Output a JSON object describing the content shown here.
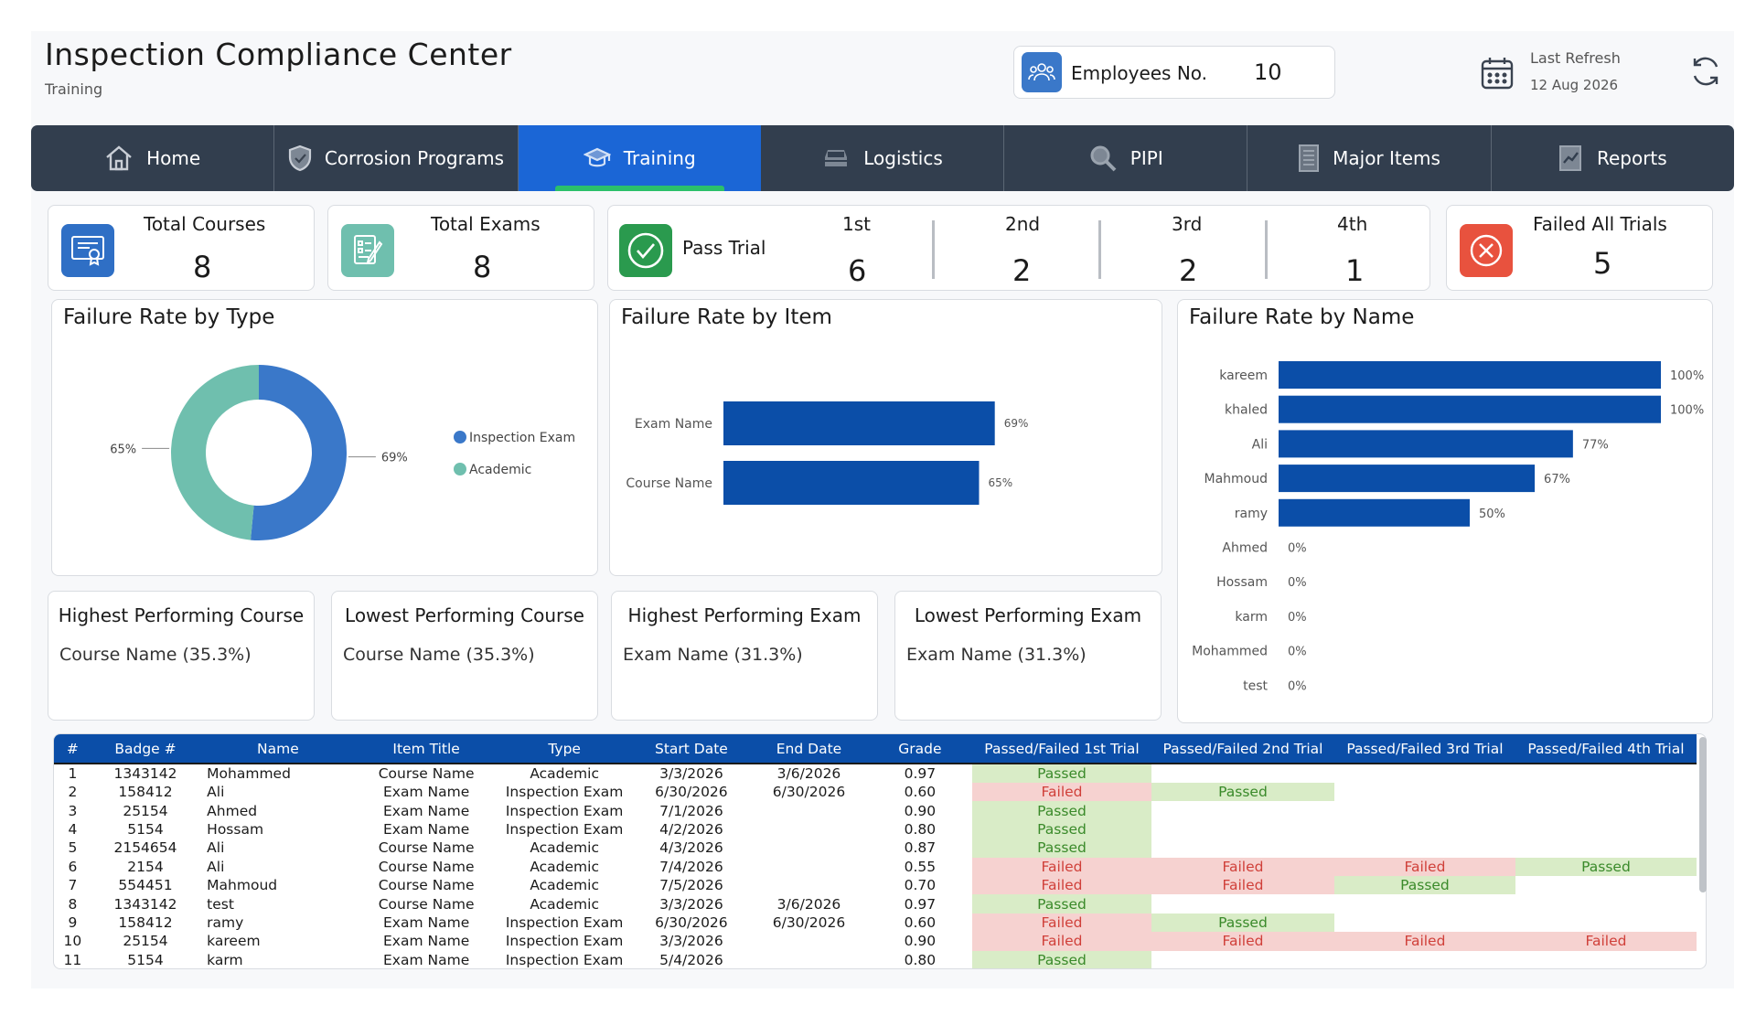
{
  "header": {
    "title": "Inspection Compliance Center",
    "subtitle": "Training",
    "employees_label": "Employees No.",
    "employees_value": "10",
    "refresh_label": "Last Refresh",
    "refresh_date": "12 Aug 2026"
  },
  "nav": [
    {
      "label": "Home",
      "icon": "home-icon"
    },
    {
      "label": "Corrosion Programs",
      "icon": "shield-icon"
    },
    {
      "label": "Training",
      "icon": "graduation-cap-icon",
      "active": true
    },
    {
      "label": "Logistics",
      "icon": "car-icon"
    },
    {
      "label": "PIPI",
      "icon": "magnifier-icon"
    },
    {
      "label": "Major Items",
      "icon": "building-icon"
    },
    {
      "label": "Reports",
      "icon": "report-icon"
    }
  ],
  "kpis": {
    "total_courses": {
      "label": "Total Courses",
      "value": "8"
    },
    "total_exams": {
      "label": "Total Exams",
      "value": "8"
    },
    "pass_trial": {
      "label": "Pass Trial",
      "trials": [
        {
          "label": "1st",
          "value": "6"
        },
        {
          "label": "2nd",
          "value": "2"
        },
        {
          "label": "3rd",
          "value": "2"
        },
        {
          "label": "4th",
          "value": "1"
        }
      ]
    },
    "failed_all": {
      "label": "Failed All Trials",
      "value": "5"
    }
  },
  "colors": {
    "primary": "#0b4ea8",
    "nav_bg": "#323e4e",
    "active_tab": "#1b66d6",
    "accent_green": "#2bc06a",
    "donut_blue": "#3a78c9",
    "donut_teal": "#6fbfae",
    "fail_red": "#e8523e",
    "pass_bg": "#d9ecc7",
    "fail_bg": "#f6d2d0"
  },
  "chart_data": [
    {
      "type": "pie",
      "title": "Failure Rate by Type",
      "categories": [
        "Inspection Exam",
        "Academic"
      ],
      "values": [
        69,
        65
      ],
      "labels": [
        "69%",
        "65%"
      ],
      "legend": "right"
    },
    {
      "type": "bar",
      "orientation": "horizontal",
      "title": "Failure Rate by Item",
      "categories": [
        "Exam Name",
        "Course Name"
      ],
      "values": [
        69,
        65
      ],
      "labels": [
        "69%",
        "65%"
      ],
      "xlim": [
        0,
        100
      ]
    },
    {
      "type": "bar",
      "orientation": "horizontal",
      "title": "Failure Rate by Name",
      "categories": [
        "kareem",
        "khaled",
        "Ali",
        "Mahmoud",
        "ramy",
        "Ahmed",
        "Hossam",
        "karm",
        "Mohammed",
        "test"
      ],
      "values": [
        100,
        100,
        77,
        67,
        50,
        0,
        0,
        0,
        0,
        0
      ],
      "labels": [
        "100%",
        "100%",
        "77%",
        "67%",
        "50%",
        "0%",
        "0%",
        "0%",
        "0%",
        "0%"
      ],
      "xlim": [
        0,
        100
      ]
    }
  ],
  "performance": [
    {
      "title": "Highest Performing Course",
      "value": "Course Name (35.3%)"
    },
    {
      "title": "Lowest Performing Course",
      "value": "Course Name (35.3%)"
    },
    {
      "title": "Highest Performing Exam",
      "value": "Exam Name (31.3%)"
    },
    {
      "title": "Lowest Performing Exam",
      "value": "Exam Name (31.3%)"
    }
  ],
  "table": {
    "columns": [
      "#",
      "Badge #",
      "Name",
      "Item Title",
      "Type",
      "Start Date",
      "End Date",
      "Grade",
      "Passed/Failed 1st Trial",
      "Passed/Failed 2nd Trial",
      "Passed/Failed 3rd Trial",
      "Passed/Failed 4th Trial"
    ],
    "rows": [
      [
        "1",
        "1343142",
        "Mohammed",
        "Course Name",
        "Academic",
        "3/3/2026",
        "3/6/2026",
        "0.97",
        "Passed",
        "",
        "",
        ""
      ],
      [
        "2",
        "158412",
        "Ali",
        "Exam Name",
        "Inspection Exam",
        "6/30/2026",
        "6/30/2026",
        "0.60",
        "Failed",
        "Passed",
        "",
        ""
      ],
      [
        "3",
        "25154",
        "Ahmed",
        "Exam Name",
        "Inspection Exam",
        "7/1/2026",
        "",
        "0.90",
        "Passed",
        "",
        "",
        ""
      ],
      [
        "4",
        "5154",
        "Hossam",
        "Exam Name",
        "Inspection Exam",
        "4/2/2026",
        "",
        "0.80",
        "Passed",
        "",
        "",
        ""
      ],
      [
        "5",
        "2154654",
        "Ali",
        "Course Name",
        "Academic",
        "4/3/2026",
        "",
        "0.87",
        "Passed",
        "",
        "",
        ""
      ],
      [
        "6",
        "2154",
        "Ali",
        "Course Name",
        "Academic",
        "7/4/2026",
        "",
        "0.55",
        "Failed",
        "Failed",
        "Failed",
        "Passed"
      ],
      [
        "7",
        "554451",
        "Mahmoud",
        "Course Name",
        "Academic",
        "7/5/2026",
        "",
        "0.70",
        "Failed",
        "Failed",
        "Passed",
        ""
      ],
      [
        "8",
        "1343142",
        "test",
        "Course Name",
        "Academic",
        "3/3/2026",
        "3/6/2026",
        "0.97",
        "Passed",
        "",
        "",
        ""
      ],
      [
        "9",
        "158412",
        "ramy",
        "Exam Name",
        "Inspection Exam",
        "6/30/2026",
        "6/30/2026",
        "0.60",
        "Failed",
        "Passed",
        "",
        ""
      ],
      [
        "10",
        "25154",
        "kareem",
        "Exam Name",
        "Inspection Exam",
        "3/3/2026",
        "",
        "0.90",
        "Failed",
        "Failed",
        "Failed",
        "Failed"
      ],
      [
        "11",
        "5154",
        "karm",
        "Exam Name",
        "Inspection Exam",
        "5/4/2026",
        "",
        "0.80",
        "Passed",
        "",
        "",
        ""
      ]
    ]
  }
}
